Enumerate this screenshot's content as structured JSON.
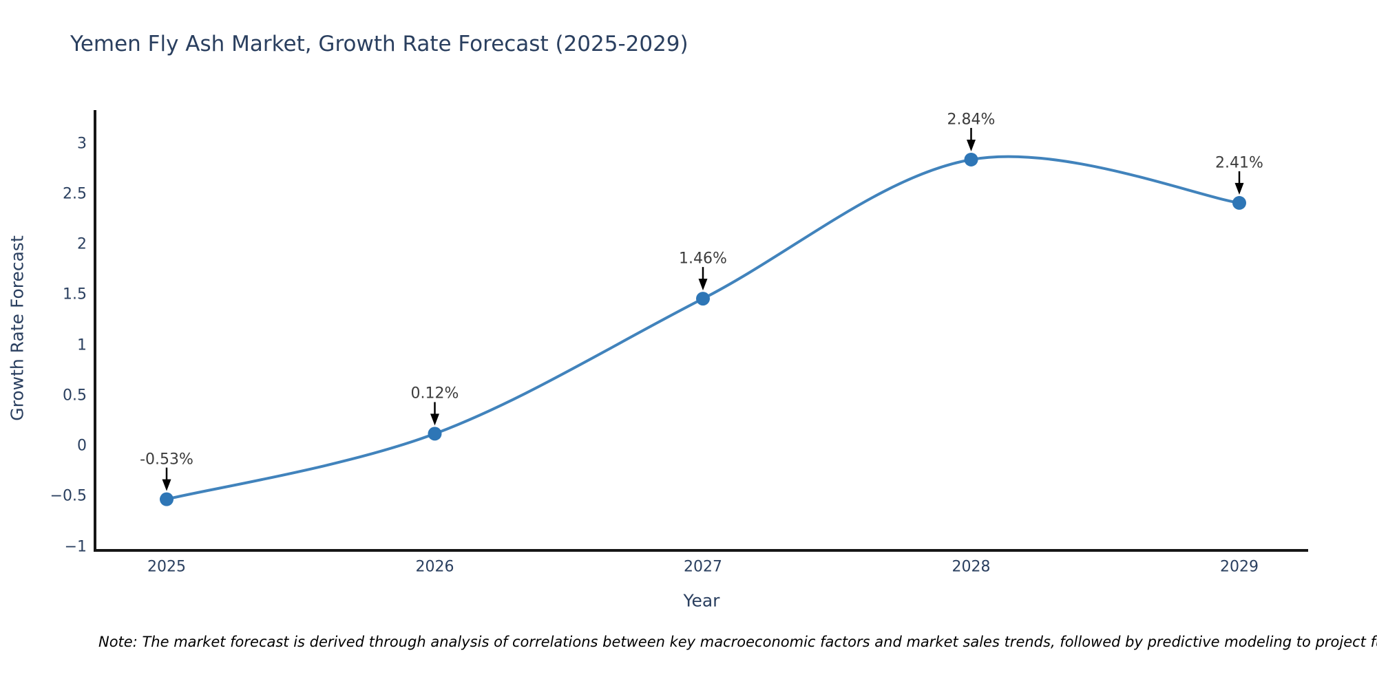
{
  "figure": {
    "title": "Yemen Fly Ash Market, Growth Rate Forecast (2025-2029)",
    "note": "Note: The market forecast is derived through analysis of correlations between key macroeconomic factors and market sales trends, followed by predictive modeling to project future sales"
  },
  "colors": {
    "line": "#4183bc",
    "marker": "#2e76b6",
    "axis": "#161616",
    "tick_text": "#2a3f5f",
    "annotation_text": "#3c3c3c",
    "arrow": "#000000",
    "background": "#ffffff"
  },
  "chart_data": {
    "type": "line",
    "title": "Yemen Fly Ash Market, Growth Rate Forecast (2025-2029)",
    "xlabel": "Year",
    "ylabel": "Growth Rate Forecast",
    "categories": [
      "2025",
      "2026",
      "2027",
      "2028",
      "2029"
    ],
    "series": [
      {
        "name": "Growth Rate Forecast",
        "values": [
          -0.53,
          0.12,
          1.46,
          2.84,
          2.41
        ]
      }
    ],
    "point_labels": [
      "-0.53%",
      "0.12%",
      "1.46%",
      "2.84%",
      "2.41%"
    ],
    "y_ticks": [
      3,
      2.5,
      2,
      1.5,
      1,
      0.5,
      0,
      -0.5,
      -1
    ],
    "y_tick_labels": [
      "3",
      "2.5",
      "2",
      "1.5",
      "1",
      "0.5",
      "0",
      "−0.5",
      "−1"
    ],
    "ylim": [
      -1.04,
      3.33
    ],
    "line_shape": "spline",
    "markers": true,
    "grid": false,
    "legend_position": "none",
    "annotation_style": "value label with downward arrow above each point"
  }
}
